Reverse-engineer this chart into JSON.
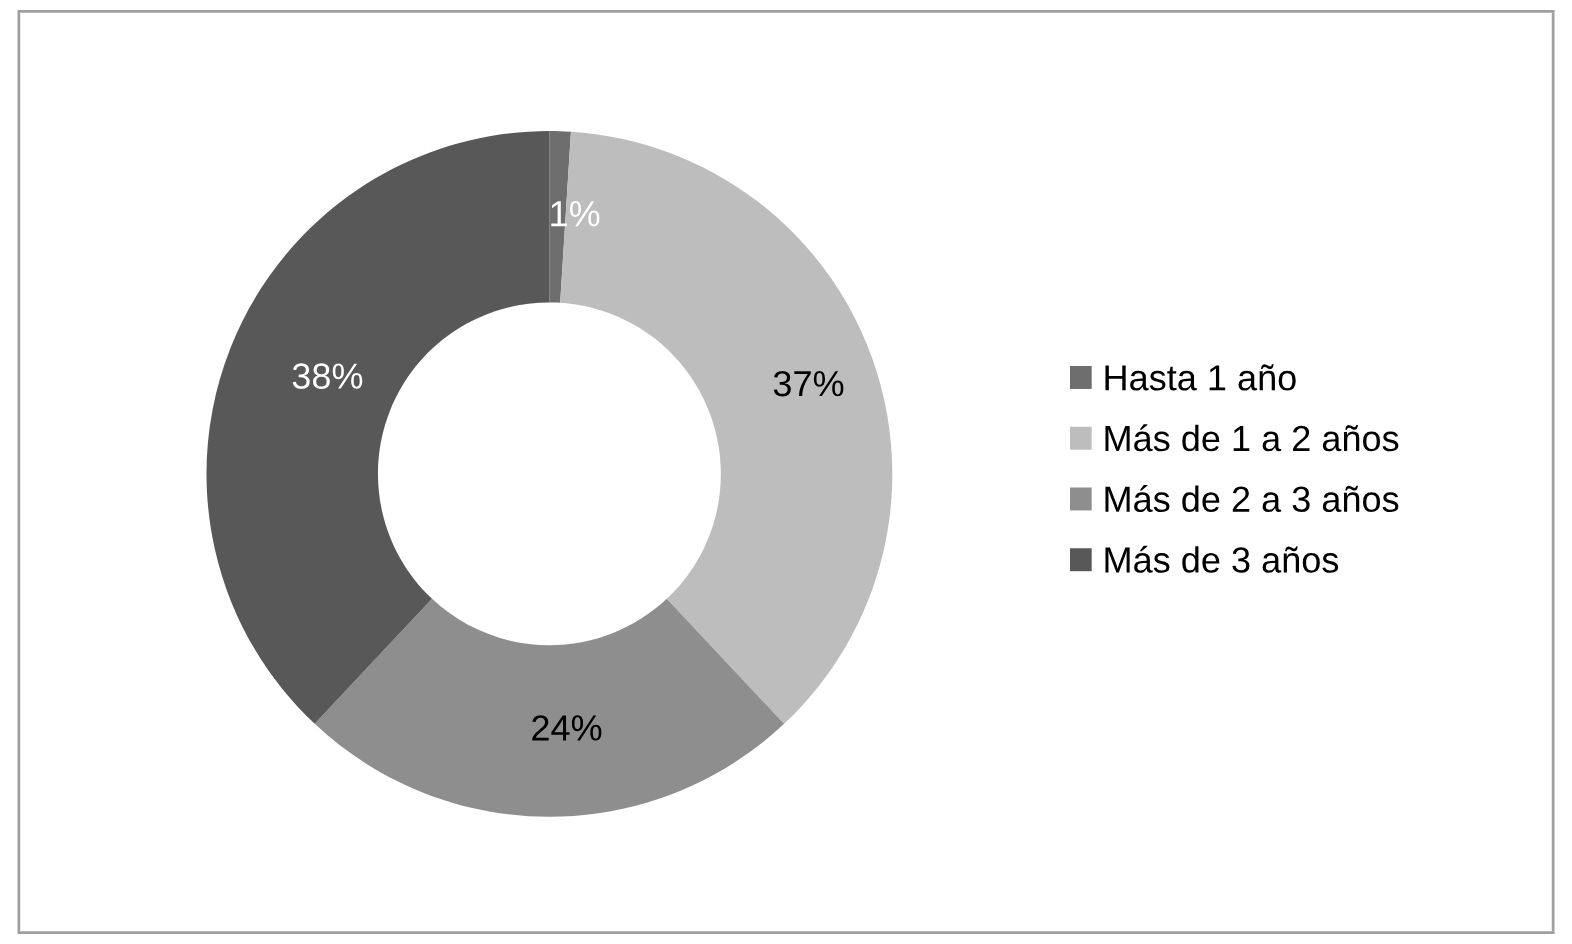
{
  "chart_data": {
    "type": "donut",
    "categories": [
      "Hasta 1 año",
      "Más de 1 a 2 años",
      "Más de 2 a 3 años",
      "Más de 3 años"
    ],
    "values": [
      1,
      37,
      24,
      38
    ],
    "colors": [
      "#6e6e6e",
      "#bdbdbd",
      "#8e8e8e",
      "#585858"
    ],
    "value_labels": [
      "1%",
      "37%",
      "24%",
      "38%"
    ],
    "legend": "right"
  }
}
